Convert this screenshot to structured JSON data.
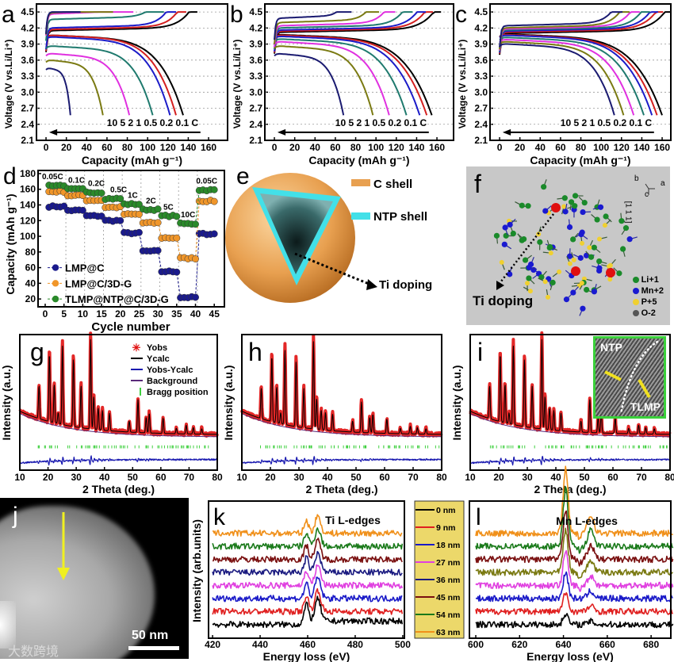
{
  "figure": {
    "panel_labels": [
      "a",
      "b",
      "c",
      "d",
      "e",
      "f",
      "g",
      "h",
      "i",
      "j",
      "k",
      "l"
    ],
    "watermark": "大数跨境"
  },
  "colors": {
    "rate_colors": [
      "#000000",
      "#d42020",
      "#1c1cc8",
      "#1f7a6e",
      "#e030e0",
      "#7a7a12",
      "#1a1a70"
    ],
    "lmp_c": "#1a1a8c",
    "lmp_c_3dg": "#f0962a",
    "tlmp": "#2a8a2a",
    "yobs": "#e01010",
    "ycalc": "#000000",
    "diff": "#1a1ab0",
    "bragg": "#40d040",
    "eels": [
      "#000000",
      "#e02020",
      "#1a1ac8",
      "#e040e0",
      "#1a1a80",
      "#7a1010",
      "#1a7a1a",
      "#f0901a"
    ],
    "eels_l": [
      "#000000",
      "#e02020",
      "#1a1ac8",
      "#e040e0",
      "#7a7a12",
      "#7a1010",
      "#1a7a1a",
      "#f0901a"
    ]
  },
  "panel_e": {
    "c_shell": "C shell",
    "ntp_shell": "NTP shell",
    "ti_doping": "Ti doping"
  },
  "panel_f": {
    "ti_doping": "Ti doping",
    "axes": {
      "a": "a",
      "b": "b",
      "c": "c"
    },
    "direction": "[1 1 1]",
    "legend": [
      "Li+1",
      "Mn+2",
      "P+5",
      "O-2"
    ],
    "legend_colors": [
      "#1a8a2a",
      "#1a1ad0",
      "#f0d030",
      "#555555"
    ]
  },
  "panel_i_inset": {
    "ntp": "NTP",
    "tlmp": "TLMP"
  },
  "panel_j": {
    "scale_bar": "50 nm"
  },
  "chart_data": [
    {
      "id": "a",
      "type": "line",
      "xlabel": "Capacity (mAh g-1)",
      "ylabel": "Voltage (V vs.Li/Li+)",
      "xlim": [
        0,
        160
      ],
      "ylim": [
        2.1,
        4.5
      ],
      "xticks": [
        0,
        20,
        40,
        60,
        80,
        100,
        120,
        140,
        160
      ],
      "yticks": [
        2.1,
        2.4,
        2.7,
        3.0,
        3.3,
        3.6,
        3.9,
        4.2,
        4.5
      ],
      "rate_annotation": "10 5 2 1 0.5 0.2 0.1 C",
      "rates": [
        "0.1C",
        "0.2C",
        "0.5C",
        "1C",
        "2C",
        "5C",
        "10C"
      ],
      "discharge_capacity": [
        135,
        128,
        122,
        105,
        82,
        56,
        24
      ],
      "charge_capacity": [
        143,
        132,
        122,
        110,
        80,
        60,
        28
      ],
      "discharge_plateau_V": [
        4.02,
        4.02,
        3.99,
        3.82,
        3.68,
        3.56,
        3.42
      ],
      "charge_plateau_V": [
        4.15,
        4.17,
        4.2,
        4.36,
        4.46,
        4.48,
        4.49
      ]
    },
    {
      "id": "b",
      "type": "line",
      "xlabel": "Capacity (mAh g-1)",
      "ylabel": "Voltage (V vs.Li/Li+)",
      "xlim": [
        0,
        160
      ],
      "ylim": [
        2.1,
        4.5
      ],
      "xticks": [
        0,
        20,
        40,
        60,
        80,
        100,
        120,
        140,
        160
      ],
      "yticks": [
        2.1,
        2.4,
        2.7,
        3.0,
        3.3,
        3.6,
        3.9,
        4.2,
        4.5
      ],
      "rate_annotation": "10 5 2 1 0.5 0.2 0.1 C",
      "rates": [
        "0.1C",
        "0.2C",
        "0.5C",
        "1C",
        "2C",
        "5C",
        "10C"
      ],
      "discharge_capacity": [
        155,
        150,
        143,
        130,
        113,
        97,
        68
      ],
      "charge_capacity": [
        158,
        150,
        143,
        130,
        113,
        97,
        70
      ],
      "discharge_plateau_V": [
        4.03,
        4.02,
        4.0,
        3.95,
        3.9,
        3.82,
        3.68
      ],
      "charge_plateau_V": [
        4.12,
        4.14,
        4.16,
        4.2,
        4.24,
        4.3,
        4.38
      ]
    },
    {
      "id": "c",
      "type": "line",
      "xlabel": "Capacity (mAh g-1)",
      "ylabel": "Voltage (V vs.Li/Li+)",
      "xlim": [
        0,
        160
      ],
      "ylim": [
        2.1,
        4.5
      ],
      "xticks": [
        0,
        20,
        40,
        60,
        80,
        100,
        120,
        140,
        160
      ],
      "yticks": [
        2.1,
        2.4,
        2.7,
        3.0,
        3.3,
        3.6,
        3.9,
        4.2,
        4.5
      ],
      "rate_annotation": "10 5 2 1 0.5 0.2 0.1 C",
      "rates": [
        "0.1C",
        "0.2C",
        "0.5C",
        "1C",
        "2C",
        "5C",
        "10C"
      ],
      "discharge_capacity": [
        160,
        155,
        150,
        142,
        132,
        122,
        113
      ],
      "charge_capacity": [
        163,
        155,
        150,
        142,
        132,
        122,
        115
      ],
      "discharge_plateau_V": [
        4.04,
        4.03,
        4.02,
        3.98,
        3.94,
        3.9,
        3.86
      ],
      "charge_plateau_V": [
        4.1,
        4.12,
        4.14,
        4.16,
        4.18,
        4.2,
        4.24
      ]
    },
    {
      "id": "d",
      "type": "scatter",
      "xlabel": "Cycle number",
      "ylabel": "Capacity (mAh g-1)",
      "xlim": [
        0,
        45
      ],
      "ylim": [
        20,
        180
      ],
      "xticks": [
        0,
        5,
        10,
        15,
        20,
        25,
        30,
        35,
        40,
        45
      ],
      "yticks": [
        20,
        40,
        60,
        80,
        100,
        120,
        140,
        160,
        180
      ],
      "rate_labels": [
        "0.05C",
        "0.1C",
        "0.2C",
        "0.5C",
        "1C",
        "2C",
        "5C",
        "10C",
        "0.05C"
      ],
      "series": [
        {
          "name": "LMP@C",
          "group_values": [
            138,
            133,
            126,
            120,
            104,
            81,
            55,
            22,
            103
          ]
        },
        {
          "name": "LMP@C/3D-G",
          "group_values": [
            157,
            152,
            146,
            137,
            128,
            117,
            98,
            72,
            145
          ]
        },
        {
          "name": "TLMP@NTP@C/3D-G",
          "group_values": [
            165,
            160,
            156,
            148,
            141,
            134,
            126,
            116,
            159
          ]
        }
      ],
      "legend": "bottom-left"
    },
    {
      "id": "g",
      "type": "line",
      "xlabel": "2 Theta (deg.)",
      "ylabel": "Intensity (a.u.)",
      "xlim": [
        10,
        80
      ],
      "xticks": [
        10,
        20,
        30,
        40,
        50,
        60,
        70,
        80
      ],
      "legend": [
        "Yobs",
        "Ycalc",
        "Yobs-Ycalc",
        "Background",
        "Bragg position"
      ],
      "peaks_2theta": [
        16.8,
        20.5,
        22.2,
        23.6,
        25.1,
        29.0,
        31.7,
        35.1,
        36.2,
        37.8,
        39.3,
        41.8,
        48.8,
        51.9,
        54.8,
        55.9,
        60.8,
        65.5,
        69.0,
        71.5,
        74.5
      ],
      "peak_heights": [
        0.3,
        0.62,
        0.35,
        0.1,
        0.72,
        0.62,
        0.38,
        0.82,
        0.3,
        0.2,
        0.18,
        0.16,
        0.1,
        0.3,
        0.14,
        0.18,
        0.14,
        0.05,
        0.08,
        0.06,
        0.05
      ]
    },
    {
      "id": "h",
      "type": "line",
      "xlabel": "2 Theta (deg.)",
      "ylabel": "Intensity (a.u.)",
      "xlim": [
        10,
        80
      ],
      "xticks": [
        10,
        20,
        30,
        40,
        50,
        60,
        70,
        80
      ],
      "peaks_2theta": [
        16.8,
        20.5,
        22.2,
        23.6,
        25.1,
        29.0,
        31.7,
        35.1,
        36.2,
        37.8,
        39.3,
        41.8,
        48.8,
        51.9,
        54.8,
        55.9,
        60.8,
        65.5,
        69.0,
        71.5,
        74.5
      ],
      "peak_heights": [
        0.28,
        0.6,
        0.33,
        0.1,
        0.68,
        0.6,
        0.36,
        0.8,
        0.28,
        0.18,
        0.16,
        0.15,
        0.1,
        0.28,
        0.14,
        0.17,
        0.13,
        0.05,
        0.07,
        0.06,
        0.05
      ]
    },
    {
      "id": "i",
      "type": "line",
      "xlabel": "2 Theta (deg.)",
      "ylabel": "Intensity (a.u.)",
      "xlim": [
        10,
        80
      ],
      "xticks": [
        10,
        20,
        30,
        40,
        50,
        60,
        70,
        80
      ],
      "peaks_2theta": [
        16.8,
        20.5,
        22.2,
        23.6,
        25.1,
        29.0,
        31.7,
        35.1,
        36.2,
        37.8,
        39.3,
        41.8,
        48.8,
        51.9,
        54.8,
        55.9,
        60.8,
        65.5,
        69.0,
        71.5,
        74.5
      ],
      "peak_heights": [
        0.3,
        0.62,
        0.35,
        0.1,
        0.72,
        0.62,
        0.38,
        0.82,
        0.3,
        0.2,
        0.18,
        0.16,
        0.1,
        0.3,
        0.14,
        0.18,
        0.14,
        0.05,
        0.08,
        0.06,
        0.05
      ]
    },
    {
      "id": "k",
      "type": "line",
      "title": "Ti L-edges",
      "xlabel": "Energy loss (eV)",
      "ylabel": "Intensity (arb.units)",
      "xlim": [
        420,
        500
      ],
      "xticks": [
        420,
        440,
        460,
        480,
        500
      ],
      "series_names": [
        "0 nm",
        "9 nm",
        "18 nm",
        "27 nm",
        "36 nm",
        "45 nm",
        "54 nm",
        "63 nm"
      ],
      "peak_positions_eV": [
        459.5,
        464.5
      ]
    },
    {
      "id": "l",
      "type": "line",
      "title": "Mn L-edges",
      "xlabel": "Energy loss (eV)",
      "ylabel": "",
      "xlim": [
        600,
        690
      ],
      "xticks": [
        600,
        620,
        640,
        660,
        680
      ],
      "series_names": [
        "0 nm",
        "9 nm",
        "18 nm",
        "27 nm",
        "36 nm",
        "45 nm",
        "54 nm",
        "63 nm"
      ],
      "peak_positions_eV": [
        641,
        652
      ]
    }
  ]
}
